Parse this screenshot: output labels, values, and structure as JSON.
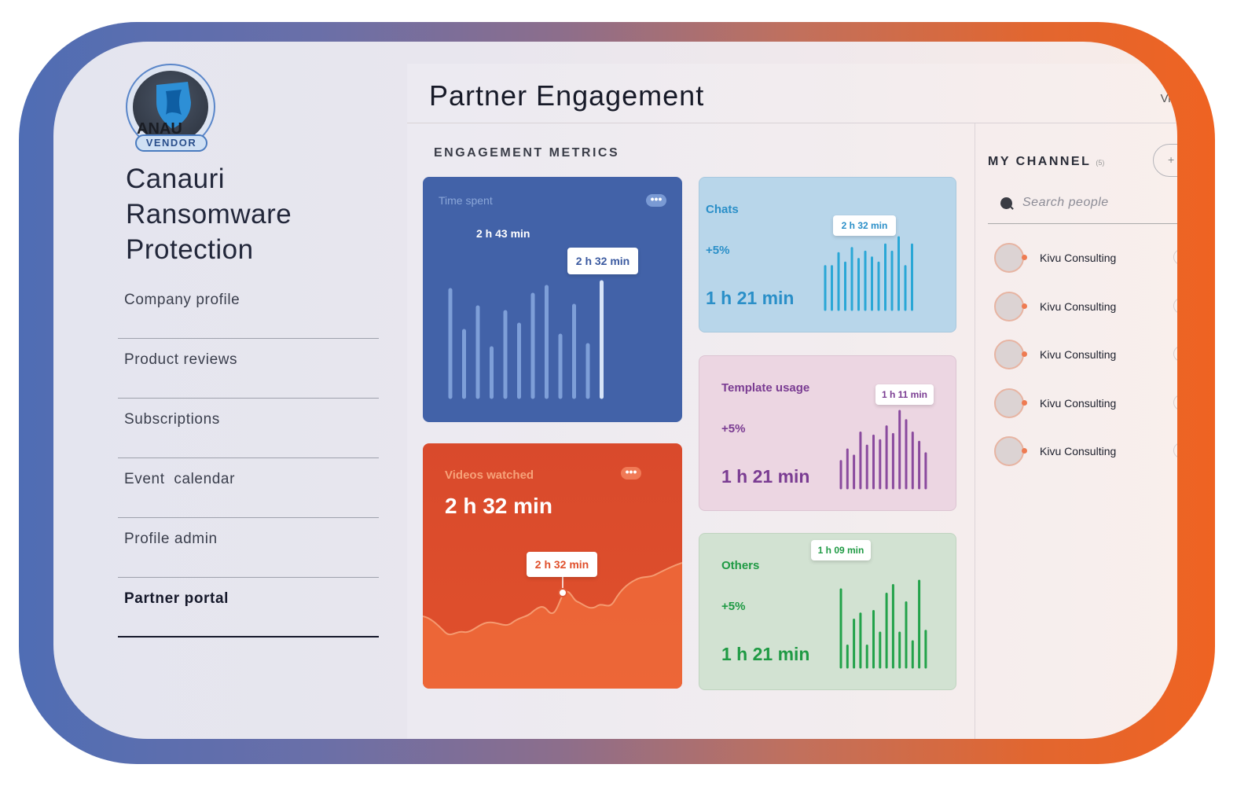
{
  "sidebar": {
    "logo_text": "ANAU",
    "badge": "VENDOR",
    "company_name": "Canauri Ransomware Protection",
    "nav": [
      {
        "label": "Company profile"
      },
      {
        "label": "Product reviews"
      },
      {
        "label": "Subscriptions"
      },
      {
        "label": "Event  calendar"
      },
      {
        "label": "Profile admin"
      },
      {
        "label": "Partner portal",
        "active": true
      }
    ]
  },
  "header": {
    "title": "Partner Engagement",
    "view_link": "Vie"
  },
  "metrics": {
    "label": "ENGAGEMENT METRICS",
    "time_spent": {
      "title": "Time spent",
      "value_label": "2 h 43 min",
      "tooltip": "2 h 32 min",
      "bars": [
        0.68,
        0.42,
        0.57,
        0.31,
        0.54,
        0.46,
        0.65,
        0.7,
        0.39,
        0.58,
        0.33,
        0.73
      ],
      "highlight_index": 11
    },
    "videos": {
      "title": "Videos watched",
      "value": "2 h 32 min",
      "tooltip": "2 h 32 min"
    },
    "chats": {
      "title": "Chats",
      "change": "+5%",
      "value": "1 h 21 min",
      "tooltip": "2 h 32 min",
      "bars": [
        0.6,
        0.6,
        0.78,
        0.65,
        0.85,
        0.7,
        0.8,
        0.72,
        0.65,
        0.9,
        0.8,
        1.0,
        0.6,
        0.9
      ]
    },
    "template": {
      "title": "Template usage",
      "change": "+5%",
      "value": "1 h 21 min",
      "tooltip": "1 h 11 min",
      "bars": [
        0.35,
        0.5,
        0.42,
        0.72,
        0.55,
        0.68,
        0.62,
        0.8,
        0.7,
        1.0,
        0.88,
        0.72,
        0.6,
        0.45
      ]
    },
    "others": {
      "title": "Others",
      "change": "+5%",
      "value": "1 h 21 min",
      "tooltip": "1 h 09 min",
      "bars": [
        0.9,
        0.25,
        0.55,
        0.62,
        0.25,
        0.65,
        0.4,
        0.85,
        0.95,
        0.4,
        0.75,
        0.3,
        1.0,
        0.42
      ]
    }
  },
  "channel": {
    "label": "MY CHANNEL",
    "count": "(5)",
    "add": "+",
    "search_placeholder": "Search people",
    "people": [
      {
        "name": "Kivu Consulting"
      },
      {
        "name": "Kivu Consulting"
      },
      {
        "name": "Kivu Consulting"
      },
      {
        "name": "Kivu Consulting"
      },
      {
        "name": "Kivu Consulting"
      }
    ]
  },
  "colors": {
    "time_card": "#4262a8",
    "video_card": "#de4d2c",
    "chat_accent": "#2aa7d6",
    "template_accent": "#8a4a9e",
    "others_accent": "#22a24a"
  }
}
